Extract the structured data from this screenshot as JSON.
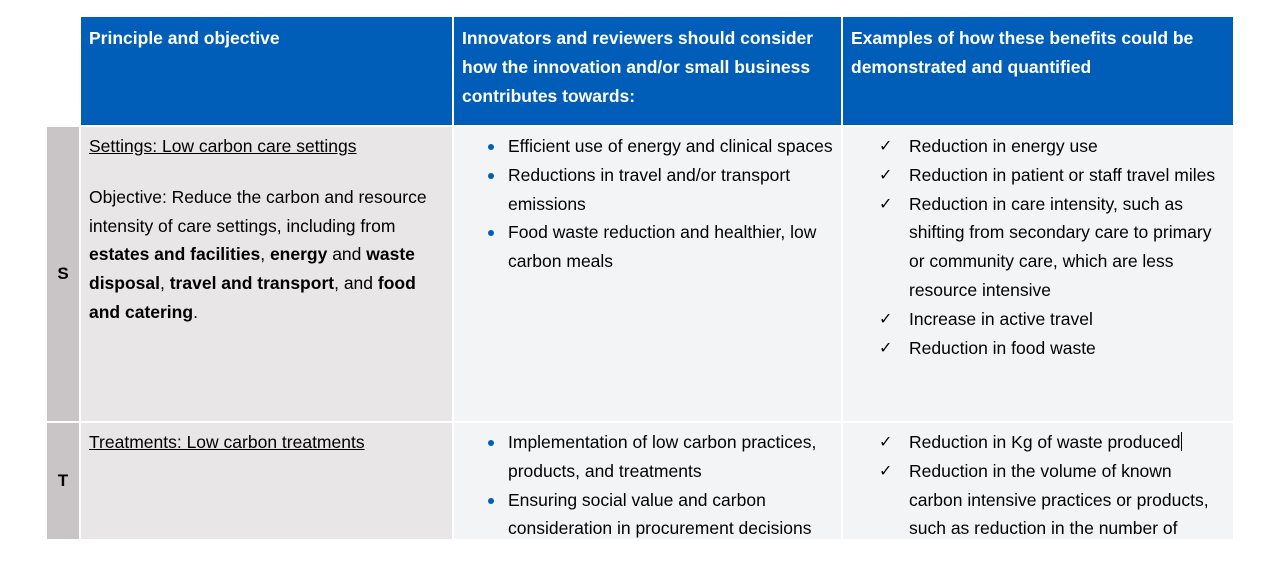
{
  "headers": {
    "col1": "Principle and objective",
    "col2": "Innovators and reviewers should consider how the innovation and/or small business contributes towards:",
    "col3": "Examples of how these benefits could be demonstrated and quantified"
  },
  "rows": [
    {
      "letter": "S",
      "heading": "Settings: Low carbon care settings",
      "objective": {
        "t1": "Objective: Reduce the carbon and resource intensity of care settings, including from ",
        "b1": "estates and facilities",
        "t2": ", ",
        "b2": "energy",
        "t3": " and ",
        "b3": "waste disposal",
        "t4": ", ",
        "b4": "travel and transport",
        "t5": ", and ",
        "b5": "food and catering",
        "t6": "."
      },
      "contributions": [
        "Efficient use of energy and clinical spaces",
        "Reductions in travel and/or transport emissions",
        "Food waste reduction and healthier, low carbon meals"
      ],
      "examples": [
        "Reduction in energy use",
        "Reduction in patient or staff travel miles",
        "Reduction in care intensity, such as shifting from secondary care to primary or community care, which are less resource intensive",
        "Increase in active travel",
        "Reduction in food waste"
      ]
    },
    {
      "letter": "T",
      "heading": "Treatments: Low carbon treatments",
      "contributions": [
        "Implementation of low carbon practices, products, and treatments",
        "Ensuring social value and carbon consideration in procurement decisions"
      ],
      "examples": [
        "Reduction in Kg of waste produced",
        "Reduction in the volume of known carbon intensive practices or products, such as reduction in the number of"
      ]
    }
  ],
  "check_glyph": "✓",
  "bullet_color": "#005eb8",
  "header_color": "#005eb8"
}
